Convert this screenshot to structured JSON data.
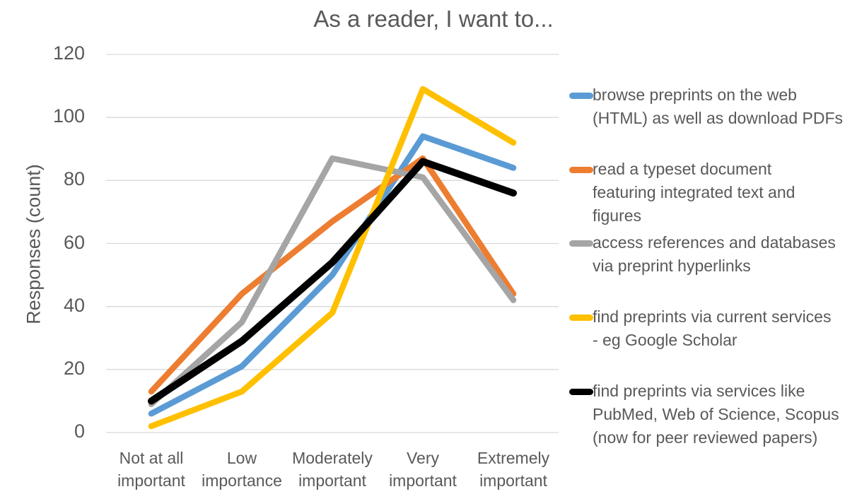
{
  "chart_data": {
    "type": "line",
    "title": "As a reader, I want to...",
    "xlabel": "",
    "ylabel": "Responses (count)",
    "ylim": [
      0,
      120
    ],
    "yticks": [
      0,
      20,
      40,
      60,
      80,
      100,
      120
    ],
    "grid": true,
    "legend_position": "right",
    "categories": [
      [
        "Not at all",
        "important"
      ],
      [
        "Low",
        "importance"
      ],
      [
        "Moderately",
        "important"
      ],
      [
        "Very",
        "important"
      ],
      [
        "Extremely",
        "important"
      ]
    ],
    "series": [
      {
        "name": "browse preprints on the web (HTML) as well as download PDFs",
        "lines": [
          "browse preprints on the web",
          "(HTML) as well as download PDFs"
        ],
        "color": "#5B9BD5",
        "values": [
          6,
          21,
          50,
          94,
          84
        ]
      },
      {
        "name": "read a typeset document featuring integrated text and figures",
        "lines": [
          "read a typeset document",
          "featuring integrated text and",
          "figures"
        ],
        "color": "#ED7D31",
        "values": [
          13,
          44,
          67,
          87,
          44
        ]
      },
      {
        "name": "access references and databases via preprint hyperlinks",
        "lines": [
          "access references and databases",
          "via preprint hyperlinks"
        ],
        "color": "#A5A5A5",
        "values": [
          9,
          35,
          87,
          81,
          42
        ]
      },
      {
        "name": "find preprints via current services - eg Google Scholar",
        "lines": [
          "find preprints via current services",
          "- eg Google Scholar"
        ],
        "color": "#FFC000",
        "values": [
          2,
          13,
          38,
          109,
          92
        ]
      },
      {
        "name": "find preprints via services like PubMed, Web of Science, Scopus (now for peer reviewed papers)",
        "lines": [
          "find preprints via services like",
          "PubMed, Web of Science, Scopus",
          "(now for peer reviewed papers)"
        ],
        "color": "#000000",
        "values": [
          10,
          29,
          54,
          86,
          76
        ]
      }
    ]
  }
}
